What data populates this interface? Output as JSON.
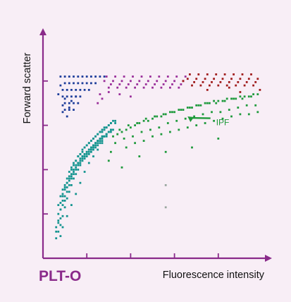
{
  "panel_label": "PLT-O",
  "colors": {
    "background": "#f8eef6",
    "axis": "#8a2a8a",
    "panel_label": "#8a2a8a",
    "annotation": "#1f9a3a"
  },
  "chart_data": {
    "type": "scatter",
    "title": "",
    "xlabel": "Fluorescence intensity",
    "ylabel": "Forward scatter",
    "grid": false,
    "legend": "none",
    "xlim": [
      0,
      100
    ],
    "ylim": [
      0,
      100
    ],
    "x_ticks": [
      20,
      40,
      60,
      80
    ],
    "y_ticks": [
      20,
      40,
      60,
      80
    ],
    "annotations": [
      {
        "text": "IPF",
        "x": 79,
        "y": 60,
        "arrow_to": [
          66,
          64
        ]
      }
    ],
    "series": [
      {
        "color": "#1d3d9a",
        "x": [
          8,
          10,
          12,
          14,
          16,
          18,
          20,
          22,
          24,
          26,
          28,
          10,
          12,
          14,
          16,
          18,
          20,
          22,
          24,
          9,
          11,
          13,
          15,
          17,
          19,
          21,
          9,
          11,
          13,
          15,
          17,
          10,
          12,
          14,
          16,
          10,
          12,
          14,
          8,
          9,
          11,
          7,
          10,
          13,
          9,
          12,
          15
        ],
        "y": [
          82,
          82,
          82,
          82,
          82,
          82,
          82,
          82,
          82,
          82,
          82,
          79,
          79,
          79,
          79,
          79,
          79,
          79,
          79,
          76,
          76,
          76,
          76,
          76,
          76,
          76,
          73,
          73,
          73,
          73,
          73,
          70,
          70,
          70,
          70,
          67,
          67,
          67,
          78,
          66,
          64,
          74,
          72,
          71,
          69,
          68,
          73
        ]
      },
      {
        "color": "#9a2f9a",
        "x": [
          28,
          32,
          36,
          40,
          44,
          48,
          52,
          56,
          60,
          64,
          30,
          34,
          38,
          42,
          46,
          50,
          54,
          58,
          62,
          29,
          33,
          37,
          41,
          45,
          49,
          53,
          57,
          61,
          65,
          31,
          35,
          39,
          43,
          47,
          51,
          55,
          59,
          63,
          26,
          27,
          25,
          30,
          35,
          40
        ],
        "y": [
          80,
          80,
          80,
          80,
          80,
          80,
          80,
          80,
          80,
          80,
          77,
          77,
          77,
          77,
          77,
          77,
          77,
          77,
          77,
          82,
          82,
          82,
          82,
          82,
          82,
          82,
          82,
          82,
          82,
          78.5,
          78.5,
          78.5,
          78.5,
          78.5,
          78.5,
          78.5,
          78.5,
          78.5,
          74,
          72,
          70,
          75,
          74,
          73
        ]
      },
      {
        "color": "#a01c1c",
        "x": [
          66,
          70,
          74,
          78,
          82,
          86,
          90,
          94,
          98,
          68,
          72,
          76,
          80,
          84,
          88,
          92,
          96,
          67,
          71,
          75,
          79,
          83,
          87,
          91,
          95,
          69,
          73,
          77,
          81,
          85,
          89,
          93,
          97,
          64,
          99,
          75,
          85,
          90
        ],
        "y": [
          81,
          81,
          81,
          81,
          81,
          81,
          81,
          81,
          81,
          78,
          78,
          78,
          78,
          78,
          78,
          78,
          78,
          83,
          83,
          83,
          83,
          83,
          83,
          83,
          83,
          79.5,
          79.5,
          79.5,
          79.5,
          79.5,
          79.5,
          79.5,
          79.5,
          80,
          76,
          76,
          77,
          75
        ]
      },
      {
        "color": "#1e9a3c",
        "x": [
          32,
          34,
          36,
          38,
          40,
          42,
          44,
          46,
          48,
          50,
          52,
          54,
          56,
          58,
          60,
          62,
          64,
          66,
          68,
          70,
          72,
          74,
          76,
          78,
          80,
          82,
          84,
          86,
          88,
          90,
          92,
          94,
          96,
          98,
          33,
          37,
          41,
          45,
          49,
          53,
          57,
          61,
          65,
          69,
          73,
          77,
          81,
          85,
          89,
          93,
          97,
          35,
          39,
          43,
          47,
          51,
          55,
          59,
          63,
          67,
          71,
          75,
          79,
          83,
          87,
          91,
          95,
          38,
          42,
          46,
          50,
          54,
          58,
          62,
          66,
          70,
          74,
          78,
          82,
          86,
          90,
          94,
          98,
          31,
          44,
          56,
          68,
          80,
          30,
          36
        ],
        "y": [
          55,
          56,
          57,
          58,
          59,
          60,
          61,
          62,
          62,
          63,
          64,
          64,
          65,
          66,
          66,
          67,
          67,
          68,
          68,
          69,
          69,
          70,
          70,
          71,
          71,
          71,
          72,
          72,
          72,
          73,
          73,
          73,
          74,
          74,
          52,
          54,
          55,
          57,
          58,
          59,
          61,
          62,
          63,
          64,
          65,
          66,
          66,
          67,
          68,
          69,
          69,
          58,
          60,
          61,
          63,
          64,
          65,
          66,
          67,
          68,
          69,
          70,
          70,
          71,
          72,
          72,
          73,
          50,
          52,
          53,
          55,
          56,
          57,
          58,
          59,
          60,
          61,
          62,
          63,
          64,
          65,
          65,
          66,
          48,
          46,
          48,
          50,
          54,
          44,
          41
        ]
      },
      {
        "color": "#14948f",
        "x": [
          6,
          7,
          8,
          8,
          9,
          9,
          10,
          10,
          11,
          11,
          12,
          12,
          13,
          13,
          14,
          14,
          15,
          15,
          16,
          16,
          17,
          17,
          18,
          18,
          19,
          19,
          20,
          20,
          21,
          21,
          22,
          22,
          23,
          23,
          24,
          24,
          25,
          25,
          26,
          26,
          27,
          27,
          28,
          28,
          29,
          29,
          30,
          30,
          31,
          31,
          7,
          8,
          9,
          10,
          11,
          12,
          13,
          14,
          15,
          16,
          17,
          18,
          19,
          20,
          21,
          22,
          23,
          24,
          25,
          26,
          27,
          28,
          29,
          30,
          31,
          32,
          6,
          7,
          8,
          9,
          10,
          11,
          12,
          13,
          14,
          15,
          16,
          17,
          18,
          19,
          20,
          21,
          22,
          23,
          24,
          25,
          26,
          27,
          28,
          29,
          6,
          7,
          8,
          9,
          10,
          11,
          12,
          13,
          14,
          15,
          16,
          17,
          18,
          19,
          20,
          21,
          22,
          23,
          24,
          25,
          26,
          27,
          7,
          8,
          9,
          10,
          11,
          12,
          13,
          14,
          15,
          16,
          17,
          18,
          19,
          20,
          21,
          22,
          23,
          24,
          25,
          26,
          27,
          28,
          29,
          30,
          31,
          32,
          33,
          8,
          9,
          11,
          13,
          15,
          17,
          19,
          21,
          23,
          25,
          27,
          29,
          31,
          33
        ],
        "y": [
          14,
          16,
          18,
          22,
          24,
          28,
          26,
          32,
          30,
          34,
          33,
          37,
          36,
          40,
          38,
          42,
          40,
          44,
          42,
          46,
          43,
          47,
          45,
          48,
          46,
          50,
          47,
          51,
          48,
          52,
          49,
          53,
          50,
          54,
          51,
          55,
          52,
          56,
          53,
          57,
          54,
          58,
          55,
          59,
          56,
          59,
          57,
          60,
          57,
          61,
          20,
          25,
          29,
          31,
          34,
          36,
          38,
          40,
          42,
          43,
          45,
          46,
          47,
          48,
          49,
          50,
          51,
          52,
          53,
          54,
          55,
          55,
          56,
          57,
          58,
          58,
          12,
          17,
          22,
          26,
          28,
          32,
          35,
          37,
          39,
          41,
          43,
          44,
          46,
          47,
          48,
          49,
          50,
          51,
          52,
          53,
          54,
          55,
          55,
          56,
          9,
          12,
          15,
          19,
          23,
          27,
          30,
          33,
          36,
          38,
          40,
          42,
          44,
          45,
          46,
          47,
          48,
          49,
          50,
          51,
          52,
          53,
          24,
          28,
          31,
          33,
          36,
          39,
          41,
          43,
          44,
          46,
          47,
          49,
          50,
          51,
          52,
          53,
          54,
          55,
          56,
          57,
          57,
          58,
          59,
          60,
          61,
          62,
          62,
          10,
          14,
          19,
          24,
          29,
          34,
          39,
          43,
          46,
          49,
          52,
          55,
          58,
          61
        ]
      },
      {
        "color": "#9aa7a0",
        "x": [
          56,
          56
        ],
        "y": [
          33,
          23
        ]
      }
    ]
  }
}
